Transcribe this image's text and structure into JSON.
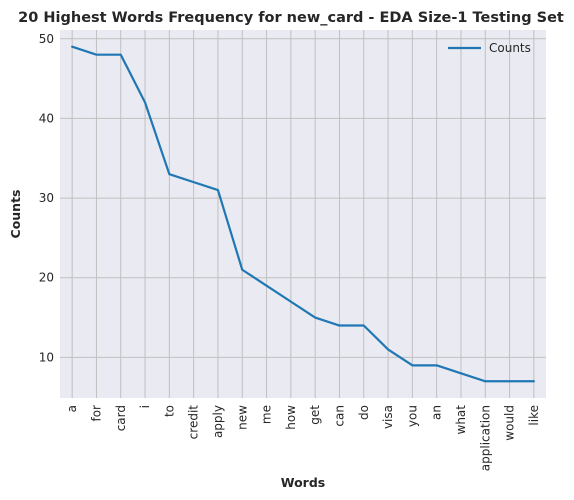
{
  "chart_data": {
    "type": "line",
    "title": "20 Highest Words Frequency for new_card - EDA Size-1 Testing Set",
    "xlabel": "Words",
    "ylabel": "Counts",
    "categories": [
      "a",
      "for",
      "card",
      "i",
      "to",
      "credit",
      "apply",
      "new",
      "me",
      "how",
      "get",
      "can",
      "do",
      "visa",
      "you",
      "an",
      "what",
      "application",
      "would",
      "like"
    ],
    "series": [
      {
        "name": "Counts",
        "values": [
          49,
          48,
          48,
          42,
          33,
          32,
          31,
          21,
          19,
          17,
          15,
          14,
          14,
          11,
          9,
          9,
          8,
          7,
          7,
          7
        ]
      }
    ],
    "ylim": [
      4.9,
      51.1
    ],
    "yticks": [
      10,
      20,
      30,
      40,
      50
    ],
    "grid": true,
    "legend": "top-right",
    "colors": {
      "line": "#1f77b4",
      "plot_background": "#eaeaf2",
      "grid": "#c0c0c0"
    }
  }
}
